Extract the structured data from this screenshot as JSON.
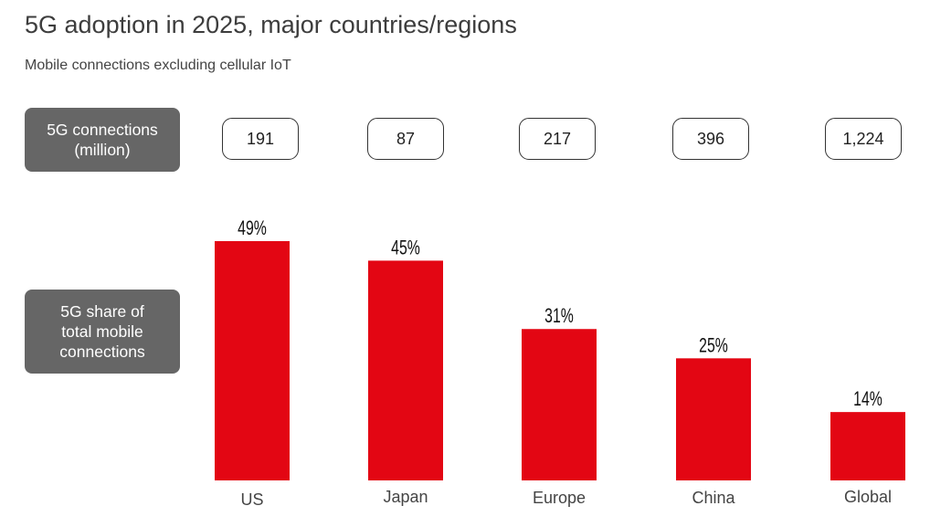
{
  "title": "5G adoption in 2025, major countries/regions",
  "subtitle": "Mobile connections excluding cellular IoT",
  "row_labels": {
    "connections": "5G connections\n(million)",
    "share": "5G share of\ntotal mobile\nconnections"
  },
  "colors": {
    "bar": "#e30613",
    "label_box": "#666666"
  },
  "chart_data": {
    "type": "bar",
    "title": "5G adoption in 2025, major countries/regions",
    "subtitle": "Mobile connections excluding cellular IoT",
    "categories": [
      "US",
      "Japan",
      "Europe",
      "China",
      "Global"
    ],
    "series": [
      {
        "name": "5G share of total mobile connections",
        "values": [
          49,
          45,
          31,
          25,
          14
        ],
        "labels": [
          "49%",
          "45%",
          "31%",
          "25%",
          "14%"
        ],
        "unit": "%"
      },
      {
        "name": "5G connections (million)",
        "values": [
          191,
          87,
          217,
          396,
          1224
        ],
        "labels": [
          "191",
          "87",
          "217",
          "396",
          "1,224"
        ]
      }
    ],
    "xlabel": "",
    "ylabel": "",
    "ylim": [
      0,
      49
    ],
    "grid": false,
    "legend": "none"
  }
}
